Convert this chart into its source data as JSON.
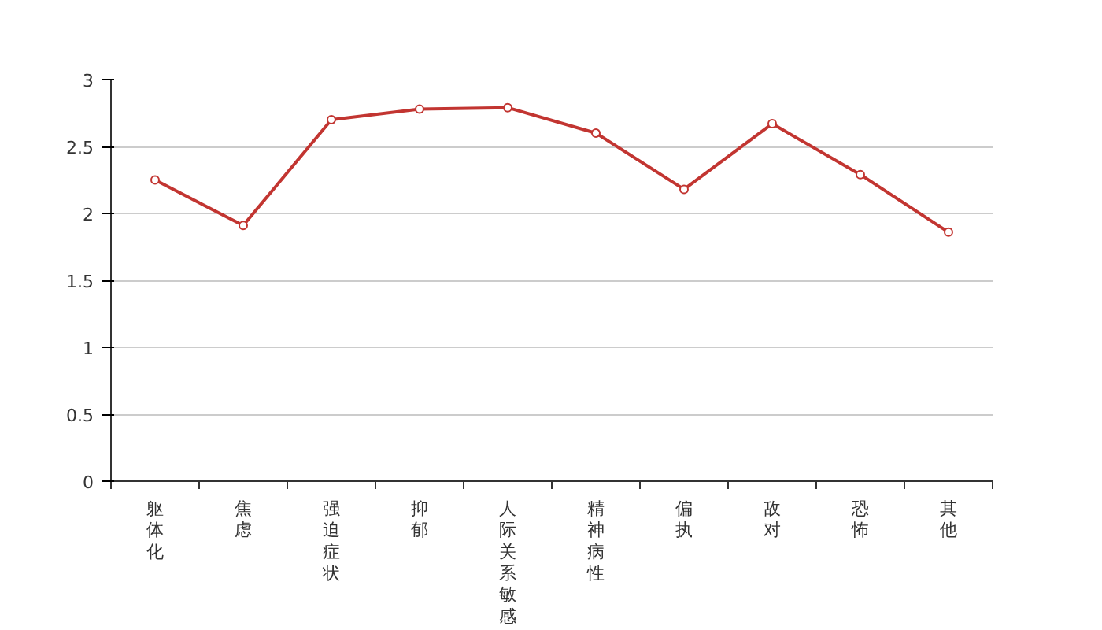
{
  "chart_data": {
    "type": "line",
    "categories": [
      "躯体化",
      "焦虑",
      "强迫症状",
      "抑郁",
      "人际关系敏感",
      "精神病性",
      "偏执",
      "敌对",
      "恐怖",
      "其他"
    ],
    "series": [
      {
        "color": "#c23531",
        "values": [
          2.25,
          1.91,
          2.7,
          2.78,
          2.79,
          2.6,
          2.18,
          2.67,
          2.29,
          1.86
        ]
      }
    ],
    "ylim": [
      0,
      3
    ],
    "yticks": [
      0,
      0.5,
      1,
      1.5,
      2,
      2.5,
      3
    ],
    "grid": "y",
    "marker": "circle",
    "line_style": "solid"
  }
}
